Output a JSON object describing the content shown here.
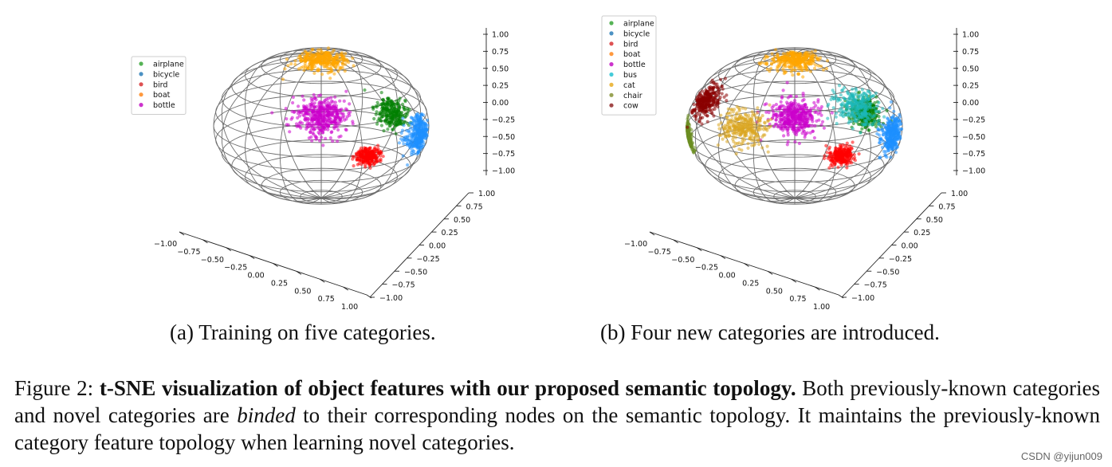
{
  "chart_data": [
    {
      "type": "scatter",
      "projection": "3d-sphere",
      "caption": "(a) Training on five categories.",
      "legend": [
        "airplane",
        "bicycle",
        "bird",
        "boat",
        "bottle"
      ],
      "colors": {
        "airplane": "#2ca02c",
        "bicycle": "#1f77b4",
        "bird": "#d62728",
        "boat": "#ff7f0e",
        "bottle": "#bf00bf"
      },
      "clusters": [
        {
          "name": "airplane",
          "center": [
            0.67,
            0.62,
            0.45
          ],
          "spread": 0.1,
          "points": 260,
          "color": "#008000"
        },
        {
          "name": "bicycle",
          "center": [
            0.72,
            0.32,
            0.05
          ],
          "spread": 0.09,
          "points": 320,
          "color": "#1e90ff"
        },
        {
          "name": "bird",
          "center": [
            0.55,
            -0.75,
            -0.85
          ],
          "spread": 0.08,
          "points": 260,
          "color": "#ff0000"
        },
        {
          "name": "boat",
          "center": [
            0.0,
            0.15,
            0.97
          ],
          "spread": 0.12,
          "points": 340,
          "color": "#ffa500"
        },
        {
          "name": "bottle",
          "center": [
            0.0,
            -0.85,
            -0.25
          ],
          "spread": 0.1,
          "points": 420,
          "color": "#cc00cc"
        }
      ],
      "axes": {
        "x_ticks": [
          "−1.00",
          "−0.75",
          "−0.50",
          "−0.25",
          "0.00",
          "0.25",
          "0.50",
          "0.75",
          "1.00"
        ],
        "y_ticks": [
          "−1.00",
          "−0.75",
          "−0.50",
          "−0.25",
          "0.00",
          "0.25",
          "0.50",
          "0.75",
          "1.00"
        ],
        "z_ticks": [
          "−1.00",
          "−0.75",
          "−0.50",
          "−0.25",
          "0.00",
          "0.25",
          "0.50",
          "0.75",
          "1.00"
        ],
        "xlim": [
          -1,
          1
        ],
        "ylim": [
          -1,
          1
        ],
        "zlim": [
          -1,
          1
        ]
      },
      "legend_placement": "left",
      "grid": true
    },
    {
      "type": "scatter",
      "projection": "3d-sphere",
      "caption": "(b) Four new categories are introduced.",
      "legend": [
        "airplane",
        "bicycle",
        "bird",
        "boat",
        "bottle",
        "bus",
        "cat",
        "chair",
        "cow"
      ],
      "colors": {
        "airplane": "#2ca02c",
        "bicycle": "#1f77b4",
        "bird": "#d62728",
        "boat": "#ff7f0e",
        "bottle": "#bf00bf",
        "bus": "#17becf",
        "cat": "#e6a817",
        "chair": "#7f8c2a",
        "cow": "#8b1a1a"
      },
      "clusters": [
        {
          "name": "airplane",
          "center": [
            0.67,
            0.62,
            0.45
          ],
          "spread": 0.1,
          "points": 260,
          "color": "#008000"
        },
        {
          "name": "bicycle",
          "center": [
            0.72,
            0.32,
            0.05
          ],
          "spread": 0.09,
          "points": 320,
          "color": "#1e90ff"
        },
        {
          "name": "bird",
          "center": [
            0.55,
            -0.75,
            -0.85
          ],
          "spread": 0.08,
          "points": 260,
          "color": "#ff0000"
        },
        {
          "name": "boat",
          "center": [
            0.0,
            0.15,
            0.97
          ],
          "spread": 0.12,
          "points": 340,
          "color": "#ffa500"
        },
        {
          "name": "bottle",
          "center": [
            0.0,
            -0.85,
            -0.25
          ],
          "spread": 0.1,
          "points": 420,
          "color": "#cc00cc"
        },
        {
          "name": "bus",
          "center": [
            0.4,
            -0.55,
            -0.05
          ],
          "spread": 0.08,
          "points": 280,
          "color": "#1bb8b8"
        },
        {
          "name": "cat",
          "center": [
            -0.4,
            -0.65,
            -0.3
          ],
          "spread": 0.1,
          "points": 300,
          "color": "#daa520"
        },
        {
          "name": "chair",
          "center": [
            -0.95,
            0.0,
            -0.15
          ],
          "spread": 0.08,
          "points": 220,
          "color": "#6b8e23"
        },
        {
          "name": "cow",
          "center": [
            -0.7,
            0.25,
            0.4
          ],
          "spread": 0.09,
          "points": 300,
          "color": "#8b0000"
        }
      ],
      "axes": {
        "x_ticks": [
          "−1.00",
          "−0.75",
          "−0.50",
          "−0.25",
          "0.00",
          "0.25",
          "0.50",
          "0.75",
          "1.00"
        ],
        "y_ticks": [
          "−1.00",
          "−0.75",
          "−0.50",
          "−0.25",
          "0.00",
          "0.25",
          "0.50",
          "0.75",
          "1.00"
        ],
        "z_ticks": [
          "−1.00",
          "−0.75",
          "−0.50",
          "−0.25",
          "0.00",
          "0.25",
          "0.50",
          "0.75",
          "1.00"
        ],
        "xlim": [
          -1,
          1
        ],
        "ylim": [
          -1,
          1
        ],
        "zlim": [
          -1,
          1
        ]
      },
      "legend_placement": "top-left",
      "grid": true
    }
  ],
  "figure": {
    "label": "Figure 2:",
    "bold": "t-SNE visualization of object features with our proposed semantic topology.",
    "text_1": " Both previously-known categories and novel categories are ",
    "italic": "binded",
    "text_2": " to their corresponding nodes on the semantic topology. It maintains the previously-known category feature topology when learning novel categories."
  },
  "watermark": "CSDN @yijun009"
}
